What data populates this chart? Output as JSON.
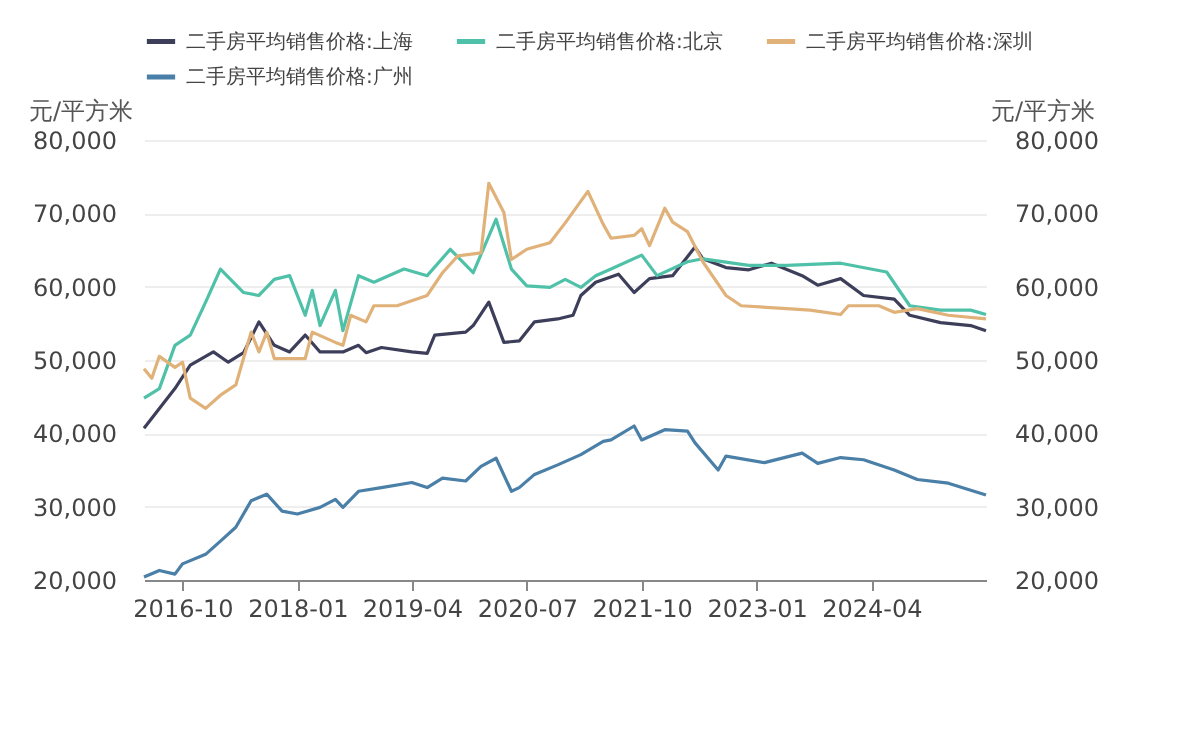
{
  "chart_data": {
    "type": "line",
    "ylabel": "元/平方米",
    "y2label": "元/平方米",
    "xlim": [
      "2016-05",
      "2025-07"
    ],
    "xticks": [
      "2016-10",
      "2018-01",
      "2019-04",
      "2020-07",
      "2021-10",
      "2023-01",
      "2024-04"
    ],
    "ylim": [
      20000,
      80000
    ],
    "yticks": [
      {
        "value": 20000,
        "label": "20,000"
      },
      {
        "value": 30000,
        "label": "30,000"
      },
      {
        "value": 40000,
        "label": "40,000"
      },
      {
        "value": 50000,
        "label": "50,000"
      },
      {
        "value": 60000,
        "label": "60,000"
      },
      {
        "value": 70000,
        "label": "70,000"
      },
      {
        "value": 80000,
        "label": "80,000"
      }
    ],
    "y2lim": [
      20000,
      80000
    ],
    "y2ticks": [
      {
        "value": 20000,
        "label": "20,000"
      },
      {
        "value": 30000,
        "label": "30,000"
      },
      {
        "value": 40000,
        "label": "40,000"
      },
      {
        "value": 50000,
        "label": "50,000"
      },
      {
        "value": 60000,
        "label": "60,000"
      },
      {
        "value": 70000,
        "label": "70,000"
      },
      {
        "value": 80000,
        "label": "80,000"
      }
    ],
    "grid": "y",
    "legend": "top",
    "line_style": "solid",
    "series": [
      {
        "name": "二手房平均销售价格:上海",
        "color": "#3d3f5a",
        "x": [
          "2016-05",
          "2016-09",
          "2016-11",
          "2017-02",
          "2017-04",
          "2017-06",
          "2017-08",
          "2017-10",
          "2017-12",
          "2018-02",
          "2018-04",
          "2018-07",
          "2018-09",
          "2018-10",
          "2018-12",
          "2019-04",
          "2019-06",
          "2019-07",
          "2019-11",
          "2019-12",
          "2020-02",
          "2020-04",
          "2020-06",
          "2020-08",
          "2020-11",
          "2021-01",
          "2021-02",
          "2021-04",
          "2021-07",
          "2021-09",
          "2021-11",
          "2022-02",
          "2022-05",
          "2022-06",
          "2022-09",
          "2022-12",
          "2023-03",
          "2023-07",
          "2023-09",
          "2023-12",
          "2024-03",
          "2024-07",
          "2024-09",
          "2025-01",
          "2025-05",
          "2025-07"
        ],
        "values": [
          40700,
          46100,
          49300,
          51100,
          49700,
          51000,
          55200,
          52000,
          51100,
          53400,
          51100,
          51100,
          52000,
          51000,
          51700,
          51100,
          50900,
          53400,
          53800,
          54700,
          57900,
          52400,
          52600,
          55200,
          55600,
          56100,
          58800,
          60600,
          61700,
          59200,
          61100,
          61500,
          65400,
          63800,
          62600,
          62300,
          63200,
          61500,
          60200,
          61100,
          58800,
          58300,
          56100,
          55100,
          54700,
          54000
        ]
      },
      {
        "name": "二手房平均销售价格:北京",
        "color": "#4fc1a8",
        "x": [
          "2016-05",
          "2016-07",
          "2016-09",
          "2016-11",
          "2017-01",
          "2017-03",
          "2017-06",
          "2017-08",
          "2017-10",
          "2017-12",
          "2018-02",
          "2018-03",
          "2018-04",
          "2018-06",
          "2018-07",
          "2018-09",
          "2018-11",
          "2019-03",
          "2019-06",
          "2019-09",
          "2019-12",
          "2020-03",
          "2020-05",
          "2020-07",
          "2020-10",
          "2020-12",
          "2021-02",
          "2021-04",
          "2021-06",
          "2021-10",
          "2021-12",
          "2022-04",
          "2022-06",
          "2022-12",
          "2023-05",
          "2023-12",
          "2024-06",
          "2024-09",
          "2025-01",
          "2025-05",
          "2025-07"
        ],
        "values": [
          44800,
          46100,
          52000,
          53400,
          57900,
          62400,
          59200,
          58800,
          61000,
          61500,
          56100,
          59500,
          54700,
          59500,
          54000,
          61500,
          60600,
          62400,
          61500,
          65100,
          61900,
          69200,
          62400,
          60100,
          59900,
          61000,
          59900,
          61500,
          62400,
          64300,
          61500,
          63400,
          63800,
          62900,
          62900,
          63200,
          62000,
          57400,
          56800,
          56800,
          56200
        ]
      },
      {
        "name": "二手房平均销售价格:深圳",
        "color": "#e0b27a",
        "x": [
          "2016-05",
          "2016-06",
          "2016-07",
          "2016-09",
          "2016-10",
          "2016-11",
          "2017-01",
          "2017-03",
          "2017-05",
          "2017-07",
          "2017-08",
          "2017-09",
          "2017-10",
          "2018-02",
          "2018-03",
          "2018-06",
          "2018-07",
          "2018-08",
          "2018-10",
          "2018-11",
          "2019-02",
          "2019-06",
          "2019-08",
          "2019-10",
          "2020-01",
          "2020-02",
          "2020-04",
          "2020-05",
          "2020-07",
          "2020-10",
          "2020-12",
          "2021-03",
          "2021-05",
          "2021-06",
          "2021-09",
          "2021-10",
          "2021-11",
          "2022-01",
          "2022-02",
          "2022-04",
          "2022-06",
          "2022-09",
          "2022-11",
          "2023-05",
          "2023-08",
          "2023-12",
          "2024-01",
          "2024-05",
          "2024-07",
          "2024-10",
          "2025-02",
          "2025-07"
        ],
        "values": [
          48800,
          47500,
          50500,
          49000,
          49700,
          44800,
          43400,
          45200,
          46600,
          53800,
          51100,
          53800,
          50200,
          50200,
          53800,
          52400,
          52000,
          56100,
          55200,
          57400,
          57400,
          58800,
          61900,
          64200,
          64600,
          74100,
          70100,
          63700,
          65100,
          66000,
          68700,
          73000,
          68500,
          66600,
          67000,
          67900,
          65600,
          70700,
          68800,
          67500,
          63400,
          58800,
          57400,
          57000,
          56800,
          56200,
          57400,
          57400,
          56500,
          57000,
          56100,
          55600
        ]
      },
      {
        "name": "二手房平均销售价格:广州",
        "color": "#4a7fa8",
        "x": [
          "2016-05",
          "2016-07",
          "2016-09",
          "2016-10",
          "2017-01",
          "2017-03",
          "2017-05",
          "2017-07",
          "2017-09",
          "2017-11",
          "2018-01",
          "2018-04",
          "2018-06",
          "2018-07",
          "2018-09",
          "2018-12",
          "2019-04",
          "2019-06",
          "2019-08",
          "2019-11",
          "2020-01",
          "2020-03",
          "2020-05",
          "2020-06",
          "2020-08",
          "2020-11",
          "2021-02",
          "2021-05",
          "2021-06",
          "2021-09",
          "2021-10",
          "2022-01",
          "2022-04",
          "2022-05",
          "2022-08",
          "2022-09",
          "2023-02",
          "2023-07",
          "2023-09",
          "2023-12",
          "2024-03",
          "2024-07",
          "2024-10",
          "2025-02",
          "2025-07"
        ],
        "values": [
          20400,
          21300,
          20800,
          22200,
          23500,
          25300,
          27200,
          30800,
          31700,
          29400,
          29000,
          29900,
          31000,
          29900,
          32100,
          32600,
          33300,
          32600,
          33900,
          33500,
          35500,
          36600,
          32100,
          32600,
          34400,
          35700,
          37100,
          38900,
          39100,
          41000,
          39100,
          40500,
          40300,
          38700,
          35000,
          36900,
          36000,
          37300,
          35900,
          36700,
          36400,
          35000,
          33700,
          33200,
          31600
        ]
      }
    ]
  }
}
